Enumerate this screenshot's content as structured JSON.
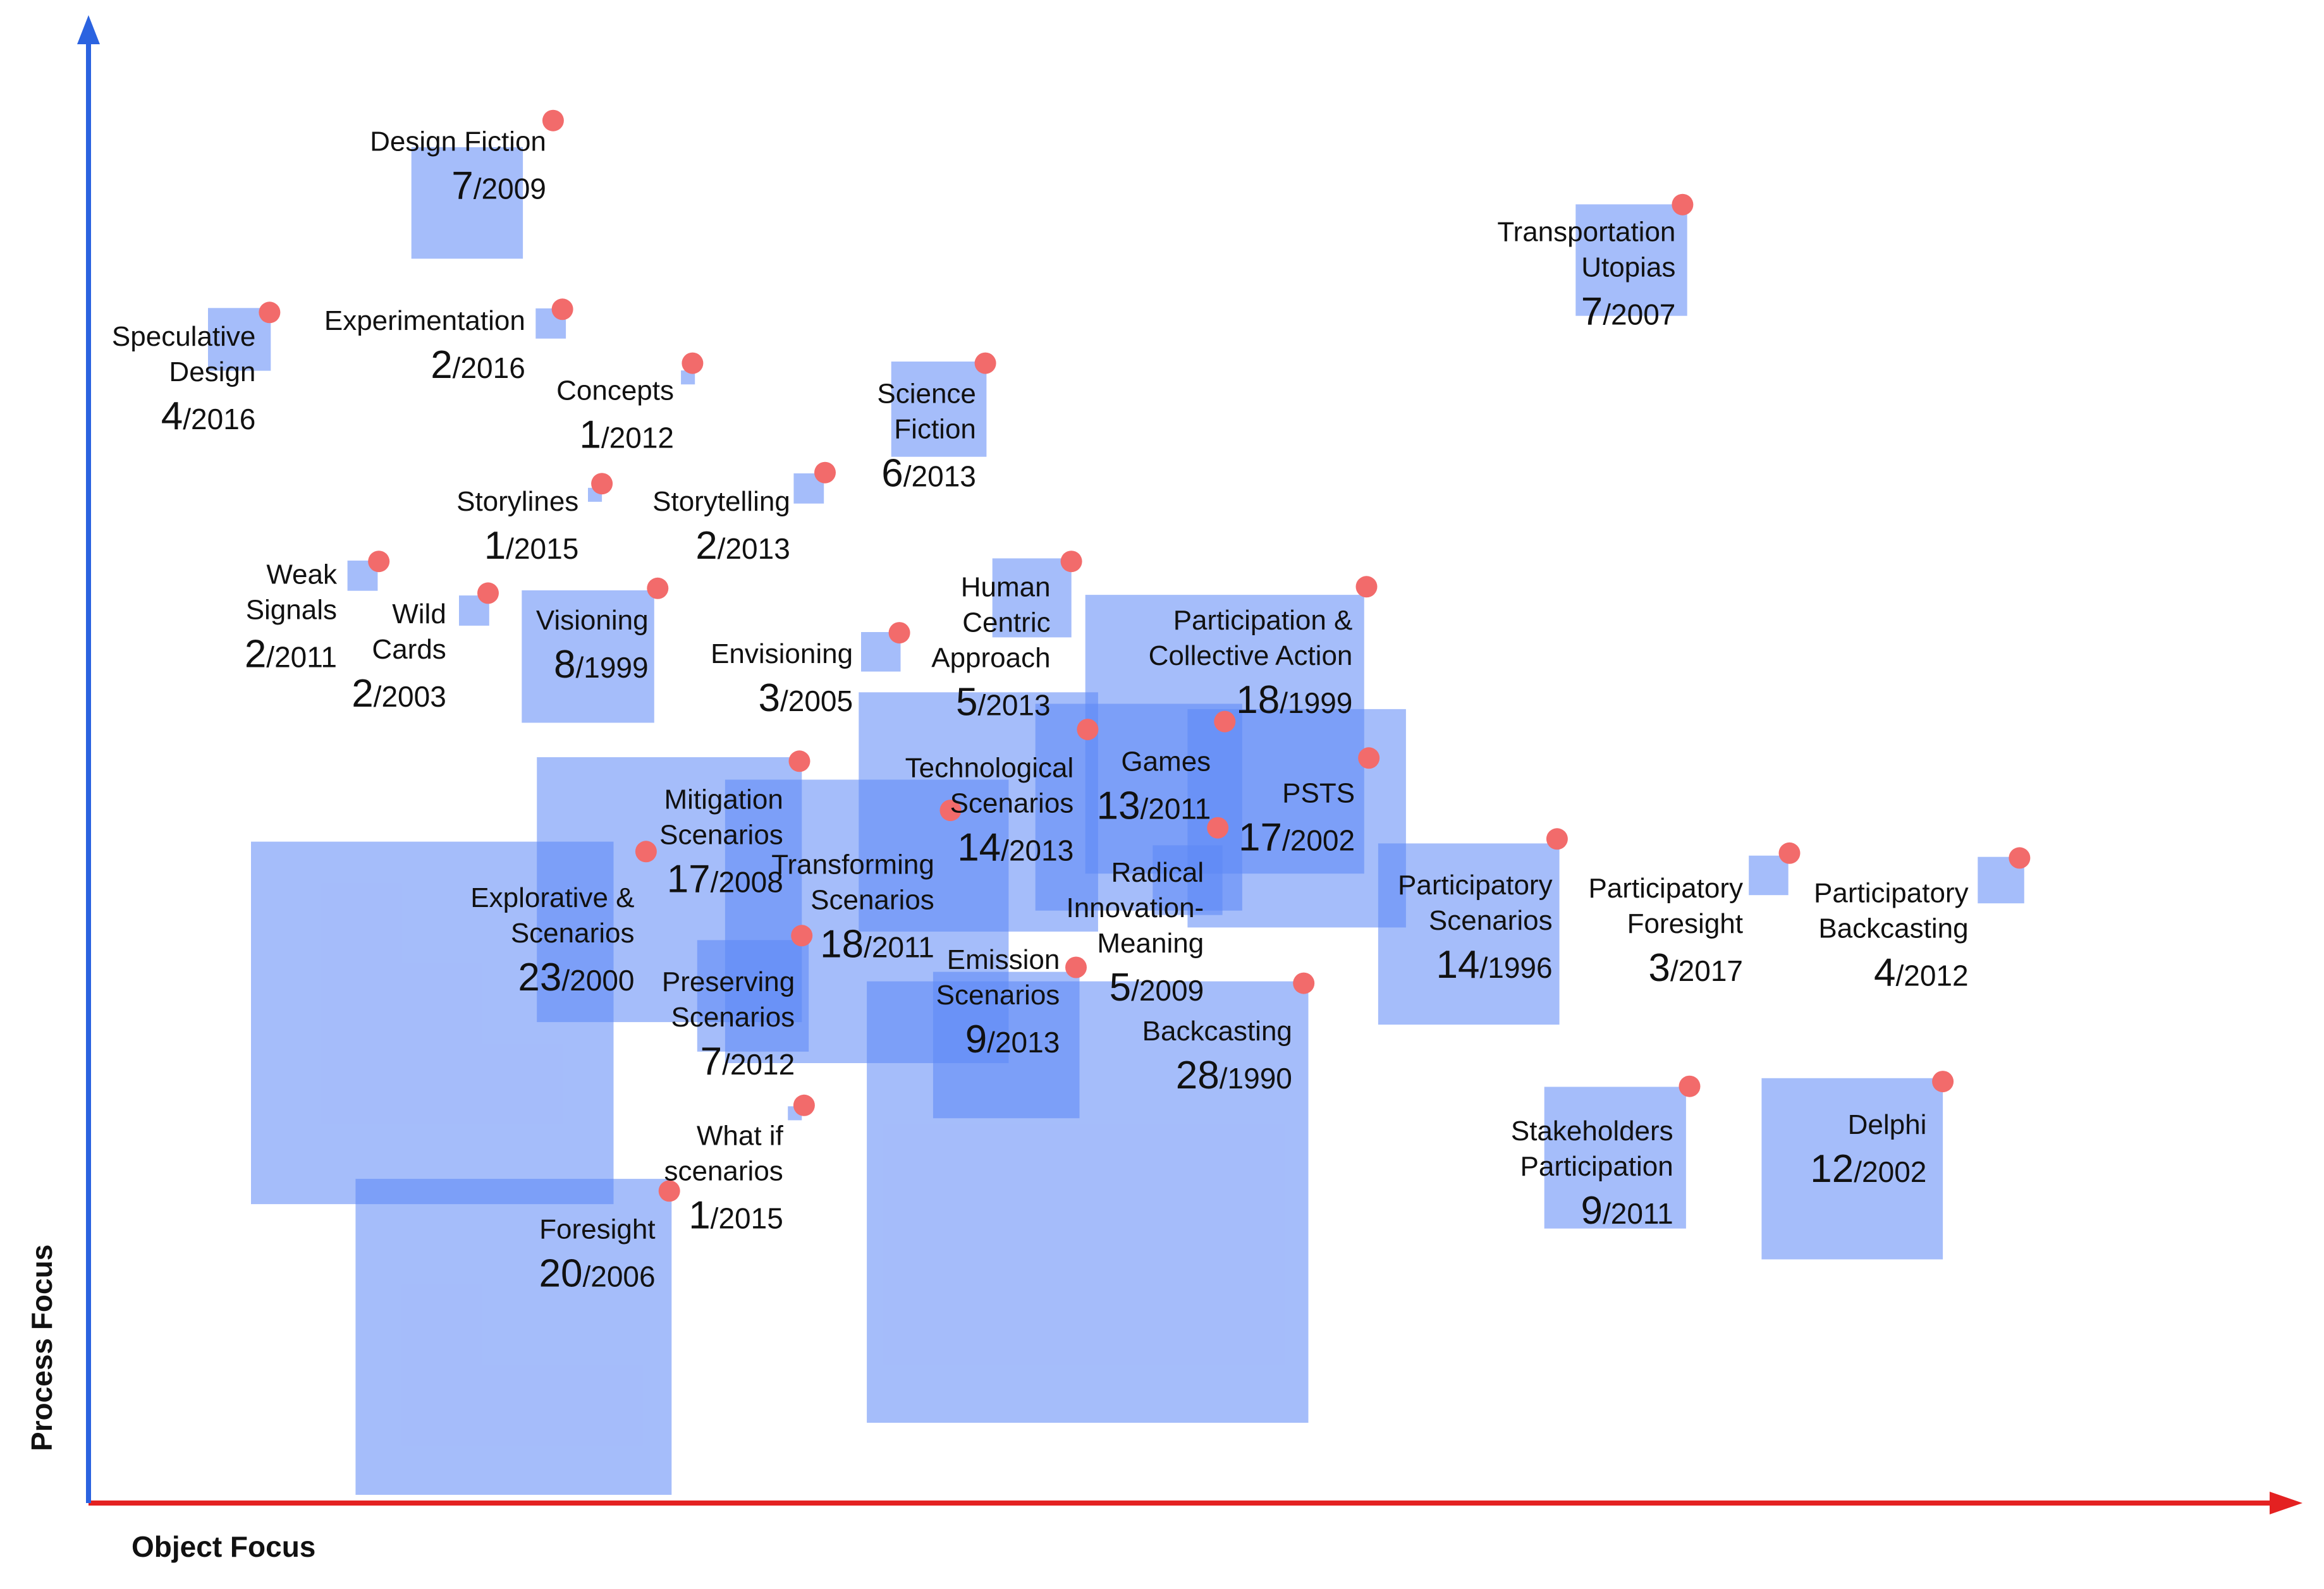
{
  "chart_data": {
    "type": "bubble-square-map",
    "xlabel": "Object Focus",
    "ylabel": "Process Focus",
    "colors": {
      "square_fill": "#5b86f5",
      "marker": "#f26b6b",
      "x_axis": "#e42121",
      "y_axis": "#2b63e0",
      "text": "#111111"
    },
    "items": [
      {
        "name": "Design Fiction",
        "count": "7",
        "year": "/2009",
        "cx": 0.201,
        "cy": 0.128,
        "size": 0.048,
        "marker": [
          0.238,
          0.076
        ]
      },
      {
        "name": "Speculative Design",
        "count": "4",
        "year": "/2016",
        "cx": 0.103,
        "cy": 0.214,
        "size": 0.027,
        "marker": [
          0.116,
          0.197
        ]
      },
      {
        "name": "Experimentation",
        "count": "2",
        "year": "/2016",
        "cx": 0.237,
        "cy": 0.204,
        "size": 0.013,
        "marker": [
          0.242,
          0.195
        ]
      },
      {
        "name": "Concepts",
        "count": "1",
        "year": "/2012",
        "cx": 0.296,
        "cy": 0.238,
        "size": 0.006,
        "marker": [
          0.298,
          0.229
        ]
      },
      {
        "name": "Science Fiction",
        "count": "6",
        "year": "/2013",
        "cx": 0.404,
        "cy": 0.258,
        "size": 0.041,
        "marker": [
          0.424,
          0.229
        ]
      },
      {
        "name": "Transportation Utopias",
        "count": "7",
        "year": "/2007",
        "cx": 0.702,
        "cy": 0.164,
        "size": 0.048,
        "marker": [
          0.724,
          0.129
        ]
      },
      {
        "name": "Storylines",
        "count": "1",
        "year": "/2015",
        "cx": 0.256,
        "cy": 0.312,
        "size": 0.006,
        "marker": [
          0.259,
          0.305
        ]
      },
      {
        "name": "Storytelling",
        "count": "2",
        "year": "/2013",
        "cx": 0.348,
        "cy": 0.308,
        "size": 0.013,
        "marker": [
          0.355,
          0.298
        ]
      },
      {
        "name": "Weak Signals",
        "count": "2",
        "year": "/2011",
        "cx": 0.156,
        "cy": 0.363,
        "size": 0.013,
        "marker": [
          0.163,
          0.354
        ]
      },
      {
        "name": "Wild Cards",
        "count": "2",
        "year": "/2003",
        "cx": 0.204,
        "cy": 0.385,
        "size": 0.013,
        "marker": [
          0.21,
          0.374
        ]
      },
      {
        "name": "Visioning",
        "count": "8",
        "year": "/1999",
        "cx": 0.253,
        "cy": 0.414,
        "size": 0.057,
        "marker": [
          0.283,
          0.371
        ]
      },
      {
        "name": "Envisioning",
        "count": "3",
        "year": "/2005",
        "cx": 0.379,
        "cy": 0.411,
        "size": 0.017,
        "marker": [
          0.387,
          0.399
        ]
      },
      {
        "name": "Human Centric Approach",
        "count": "5",
        "year": "/2013",
        "cx": 0.444,
        "cy": 0.377,
        "size": 0.034,
        "marker": [
          0.461,
          0.354
        ]
      },
      {
        "name": "Participation & Collective Action",
        "count": "18",
        "year": "/1999",
        "cx": 0.527,
        "cy": 0.463,
        "size": 0.12,
        "marker": [
          0.588,
          0.37
        ]
      },
      {
        "name": "Technological Scenarios",
        "count": "14",
        "year": "/2013",
        "cx": 0.421,
        "cy": 0.512,
        "size": 0.103,
        "marker": [
          0.468,
          0.46
        ]
      },
      {
        "name": "Games",
        "count": "13",
        "year": "/2011",
        "cx": 0.49,
        "cy": 0.509,
        "size": 0.089,
        "marker": [
          0.527,
          0.455
        ]
      },
      {
        "name": "PSTS",
        "count": "17",
        "year": "/2002",
        "cx": 0.558,
        "cy": 0.516,
        "size": 0.094,
        "marker": [
          0.589,
          0.478
        ]
      },
      {
        "name": "Mitigation Scenarios",
        "count": "17",
        "year": "/2008",
        "cx": 0.288,
        "cy": 0.561,
        "size": 0.114,
        "marker": [
          0.344,
          0.48
        ]
      },
      {
        "name": "Transforming Scenarios",
        "count": "18",
        "year": "/2011",
        "cx": 0.373,
        "cy": 0.581,
        "size": 0.122,
        "marker": [
          0.409,
          0.511
        ]
      },
      {
        "name": "Radical Innovation-Meaning",
        "count": "5",
        "year": "/2009",
        "cx": 0.511,
        "cy": 0.555,
        "size": 0.03,
        "marker": [
          0.524,
          0.522
        ]
      },
      {
        "name": "Explorative & Scenarios",
        "count": "23",
        "year": "/2000",
        "cx": 0.186,
        "cy": 0.645,
        "size": 0.156,
        "marker": [
          0.278,
          0.537
        ]
      },
      {
        "name": "Preserving Scenarios",
        "count": "7",
        "year": "/2012",
        "cx": 0.324,
        "cy": 0.628,
        "size": 0.048,
        "marker": [
          0.345,
          0.59
        ]
      },
      {
        "name": "Emission Scenarios",
        "count": "9",
        "year": "/2013",
        "cx": 0.433,
        "cy": 0.659,
        "size": 0.063,
        "marker": [
          0.463,
          0.61
        ]
      },
      {
        "name": "Backcasting",
        "count": "28",
        "year": "/1990",
        "cx": 0.468,
        "cy": 0.758,
        "size": 0.19,
        "marker": [
          0.561,
          0.62
        ]
      },
      {
        "name": "Participatory Scenarios",
        "count": "14",
        "year": "/1996",
        "cx": 0.632,
        "cy": 0.589,
        "size": 0.078,
        "marker": [
          0.67,
          0.529
        ]
      },
      {
        "name": "Participatory Foresight",
        "count": "3",
        "year": "/2017",
        "cx": 0.761,
        "cy": 0.552,
        "size": 0.017,
        "marker": [
          0.77,
          0.538
        ]
      },
      {
        "name": "Participatory Backcasting",
        "count": "4",
        "year": "/2012",
        "cx": 0.861,
        "cy": 0.555,
        "size": 0.02,
        "marker": [
          0.869,
          0.541
        ]
      },
      {
        "name": "What if scenarios",
        "count": "1",
        "year": "/2015",
        "cx": 0.342,
        "cy": 0.702,
        "size": 0.006,
        "marker": [
          0.346,
          0.697
        ]
      },
      {
        "name": "Foresight",
        "count": "20",
        "year": "/2006",
        "cx": 0.221,
        "cy": 0.843,
        "size": 0.136,
        "marker": [
          0.288,
          0.751
        ]
      },
      {
        "name": "Stakeholders Participation",
        "count": "9",
        "year": "/2011",
        "cx": 0.695,
        "cy": 0.73,
        "size": 0.061,
        "marker": [
          0.727,
          0.685
        ]
      },
      {
        "name": "Delphi",
        "count": "12",
        "year": "/2002",
        "cx": 0.797,
        "cy": 0.737,
        "size": 0.078,
        "marker": [
          0.836,
          0.682
        ]
      }
    ]
  }
}
